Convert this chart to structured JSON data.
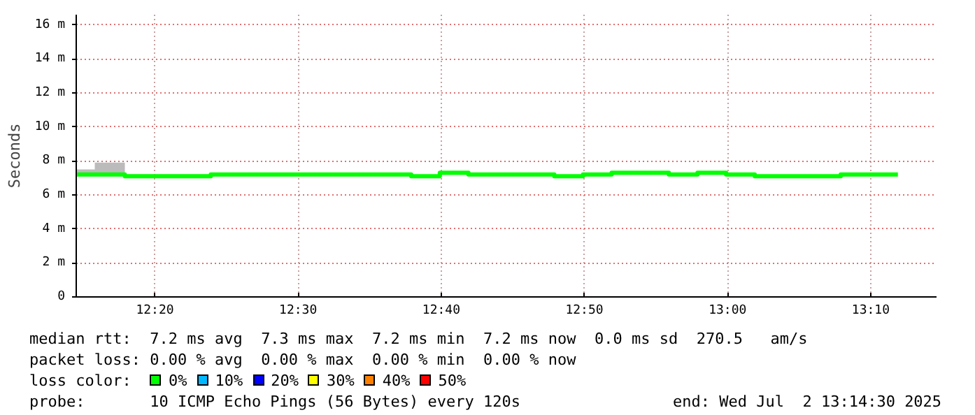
{
  "chart_data": {
    "type": "step",
    "ylabel": "Seconds",
    "x": [
      12.2417,
      12.2633,
      12.2983,
      12.3983,
      12.4983,
      12.565,
      12.6317,
      12.665,
      12.6983,
      12.7983,
      12.8317,
      12.865,
      12.9317,
      12.965,
      12.9983,
      13.0317,
      13.1317,
      13.1983
    ],
    "series": [
      {
        "name": "0%",
        "color": "#00ff00",
        "values": [
          7.2,
          7.2,
          7.1,
          7.2,
          7.2,
          7.2,
          7.1,
          7.3,
          7.2,
          7.1,
          7.2,
          7.3,
          7.2,
          7.3,
          7.2,
          7.1,
          7.2,
          7.2
        ],
        "lower": [
          7.2,
          7.2,
          7.1,
          7.2,
          7.2,
          7.2,
          7.1,
          7.3,
          7.2,
          7.1,
          7.2,
          7.3,
          7.2,
          7.3,
          7.2,
          7.1,
          7.2,
          7.2
        ],
        "upper": [
          7.5,
          7.9,
          7.2,
          7.2,
          7.3,
          7.2,
          7.1,
          7.3,
          7.3,
          7.1,
          7.3,
          7.3,
          7.3,
          7.3,
          7.2,
          7.1,
          7.2,
          7.2
        ]
      },
      {
        "name": "10%",
        "color": "#00b8ff",
        "values": [
          null,
          null,
          null,
          null,
          null,
          null,
          null,
          null,
          null,
          null,
          null,
          null,
          null,
          null,
          null,
          null,
          null,
          null
        ]
      },
      {
        "name": "20%",
        "color": "#0000ff",
        "values": [
          null,
          null,
          null,
          null,
          null,
          null,
          null,
          null,
          null,
          null,
          null,
          null,
          null,
          null,
          null,
          null,
          null,
          null
        ]
      },
      {
        "name": "30%",
        "color": "#ffff00",
        "values": [
          null,
          null,
          null,
          null,
          null,
          null,
          null,
          null,
          null,
          null,
          null,
          null,
          null,
          null,
          null,
          null,
          null,
          null
        ]
      },
      {
        "name": "40%",
        "color": "#ff8000",
        "values": [
          null,
          null,
          null,
          null,
          null,
          null,
          null,
          null,
          null,
          null,
          null,
          null,
          null,
          null,
          null,
          null,
          null,
          null
        ]
      },
      {
        "name": "50%",
        "color": "#ff0000",
        "values": [
          null,
          null,
          null,
          null,
          null,
          null,
          null,
          null,
          null,
          null,
          null,
          null,
          null,
          null,
          null,
          null,
          null,
          null
        ]
      }
    ],
    "legend_title": "loss color:",
    "legend": "bottom",
    "xlim": [
      12.2417,
      13.2433
    ],
    "ylim": [
      0,
      16.6
    ],
    "xticks": [
      {
        "value": 12.3333,
        "label": "12:20"
      },
      {
        "value": 12.5,
        "label": "12:30"
      },
      {
        "value": 12.6667,
        "label": "12:40"
      },
      {
        "value": 12.8333,
        "label": "12:50"
      },
      {
        "value": 13.0,
        "label": "13:00"
      },
      {
        "value": 13.1667,
        "label": "13:10"
      }
    ],
    "yticks": [
      0,
      {
        "value": 2,
        "label": "2 m"
      },
      {
        "value": 4,
        "label": "4 m"
      },
      {
        "value": 6,
        "label": "6 m"
      },
      {
        "value": 8,
        "label": "8 m"
      },
      {
        "value": 10,
        "label": "10 m"
      },
      {
        "value": 12,
        "label": "12 m"
      },
      {
        "value": 14,
        "label": "14 m"
      },
      {
        "value": 16,
        "label": "16 m"
      }
    ],
    "grid": true,
    "annotations": [
      "median rtt:  7.2 ms avg  7.3 ms max  7.2 ms min  7.2 ms now  0.0 ms sd  270.5   am/s",
      "packet loss: 0.00 % avg  0.00 % max  0.00 % min  0.00 % now",
      "probe:       10 ICMP Echo Pings (56 Bytes) every 120s",
      "end: Wed Jul  2 13:14:30 2025"
    ]
  }
}
